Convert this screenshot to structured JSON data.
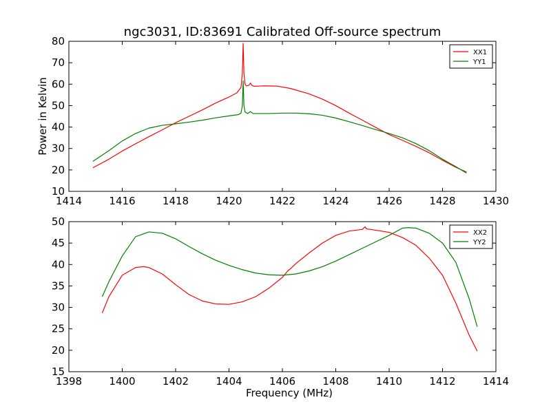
{
  "title": "ngc3031, ID:83691 Calibrated Off-source spectrum",
  "chart_data": [
    {
      "type": "line",
      "ylabel": "Power in Kelvin",
      "xlabel": "",
      "xlim": [
        1414,
        1430
      ],
      "ylim": [
        10,
        80
      ],
      "xticks": [
        "1414",
        "1416",
        "1418",
        "1420",
        "1422",
        "1424",
        "1426",
        "1428",
        "1430"
      ],
      "yticks": [
        "10",
        "20",
        "30",
        "40",
        "50",
        "60",
        "70",
        "80"
      ],
      "legend_position": "top-right",
      "series": [
        {
          "name": "XX1",
          "color": "#ff0000",
          "points": [
            [
              1414.9,
              21
            ],
            [
              1415.5,
              25
            ],
            [
              1416,
              28.8
            ],
            [
              1416.5,
              32.2
            ],
            [
              1417,
              35.5
            ],
            [
              1417.5,
              38.7
            ],
            [
              1418,
              42
            ],
            [
              1418.5,
              45
            ],
            [
              1419,
              48
            ],
            [
              1419.5,
              51.2
            ],
            [
              1420,
              54
            ],
            [
              1420.3,
              56
            ],
            [
              1420.45,
              58.5
            ],
            [
              1420.5,
              65
            ],
            [
              1420.53,
              79
            ],
            [
              1420.56,
              65
            ],
            [
              1420.6,
              60
            ],
            [
              1420.65,
              59.2
            ],
            [
              1420.75,
              59.5
            ],
            [
              1420.8,
              60.5
            ],
            [
              1420.85,
              59.5
            ],
            [
              1420.95,
              59
            ],
            [
              1421.3,
              59.2
            ],
            [
              1421.8,
              59.1
            ],
            [
              1422.3,
              58
            ],
            [
              1423,
              55.5
            ],
            [
              1423.5,
              53
            ],
            [
              1424,
              50
            ],
            [
              1424.5,
              46.5
            ],
            [
              1425,
              43.2
            ],
            [
              1425.5,
              39.8
            ],
            [
              1426,
              36.5
            ],
            [
              1426.5,
              33.8
            ],
            [
              1427,
              31
            ],
            [
              1427.5,
              28
            ],
            [
              1428,
              24.5
            ],
            [
              1428.5,
              21.2
            ],
            [
              1428.9,
              19
            ]
          ]
        },
        {
          "name": "YY1",
          "color": "#007f00",
          "points": [
            [
              1414.9,
              24
            ],
            [
              1415.5,
              29
            ],
            [
              1416,
              33.5
            ],
            [
              1416.5,
              37
            ],
            [
              1417,
              39.5
            ],
            [
              1417.5,
              40.8
            ],
            [
              1418,
              41.5
            ],
            [
              1418.5,
              42.3
            ],
            [
              1419,
              43.2
            ],
            [
              1419.5,
              44.3
            ],
            [
              1420,
              45.2
            ],
            [
              1420.35,
              45.8
            ],
            [
              1420.45,
              46.5
            ],
            [
              1420.5,
              50
            ],
            [
              1420.53,
              61.5
            ],
            [
              1420.56,
              50
            ],
            [
              1420.6,
              47
            ],
            [
              1420.7,
              46.3
            ],
            [
              1420.8,
              47.2
            ],
            [
              1420.9,
              46.3
            ],
            [
              1421.5,
              46.3
            ],
            [
              1422,
              46.5
            ],
            [
              1422.5,
              46.5
            ],
            [
              1423,
              46.2
            ],
            [
              1423.5,
              45.5
            ],
            [
              1424,
              44.2
            ],
            [
              1424.5,
              42.5
            ],
            [
              1425,
              40.7
            ],
            [
              1425.5,
              38.8
            ],
            [
              1426,
              37
            ],
            [
              1426.5,
              35
            ],
            [
              1427,
              32.3
            ],
            [
              1427.5,
              29
            ],
            [
              1428,
              25
            ],
            [
              1428.5,
              21.5
            ],
            [
              1428.9,
              18.5
            ]
          ]
        }
      ]
    },
    {
      "type": "line",
      "ylabel": "",
      "xlabel": "Frequency (MHz)",
      "xlim": [
        1398,
        1414
      ],
      "ylim": [
        15,
        50
      ],
      "xticks": [
        "1398",
        "1400",
        "1402",
        "1404",
        "1406",
        "1408",
        "1410",
        "1412",
        "1414"
      ],
      "yticks": [
        "15",
        "20",
        "25",
        "30",
        "35",
        "40",
        "45",
        "50"
      ],
      "legend_position": "top-right",
      "series": [
        {
          "name": "XX2",
          "color": "#ff0000",
          "points": [
            [
              1399.25,
              28.7
            ],
            [
              1399.5,
              32.5
            ],
            [
              1400,
              37.5
            ],
            [
              1400.5,
              39.3
            ],
            [
              1400.8,
              39.5
            ],
            [
              1401,
              39.3
            ],
            [
              1401.5,
              37.8
            ],
            [
              1402,
              35.3
            ],
            [
              1402.5,
              33
            ],
            [
              1403,
              31.5
            ],
            [
              1403.5,
              30.8
            ],
            [
              1404,
              30.7
            ],
            [
              1404.5,
              31.3
            ],
            [
              1405,
              32.5
            ],
            [
              1405.5,
              34.5
            ],
            [
              1406,
              37
            ],
            [
              1406.2,
              38.5
            ],
            [
              1406.3,
              39
            ],
            [
              1406.5,
              40.2
            ],
            [
              1407,
              42.7
            ],
            [
              1407.5,
              45
            ],
            [
              1408,
              46.8
            ],
            [
              1408.5,
              47.8
            ],
            [
              1409,
              48.2
            ],
            [
              1409.1,
              48.8
            ],
            [
              1409.15,
              48.3
            ],
            [
              1409.5,
              48
            ],
            [
              1410,
              47.5
            ],
            [
              1410.5,
              46.3
            ],
            [
              1411,
              44.5
            ],
            [
              1411.5,
              41.5
            ],
            [
              1412,
              37.5
            ],
            [
              1412.5,
              31
            ],
            [
              1413,
              23.5
            ],
            [
              1413.3,
              19.8
            ]
          ]
        },
        {
          "name": "YY2",
          "color": "#007f00",
          "points": [
            [
              1399.25,
              32.5
            ],
            [
              1399.5,
              36
            ],
            [
              1400,
              42
            ],
            [
              1400.5,
              46.5
            ],
            [
              1401,
              47.6
            ],
            [
              1401.5,
              47.3
            ],
            [
              1402,
              46
            ],
            [
              1402.5,
              44.2
            ],
            [
              1403,
              42.5
            ],
            [
              1403.5,
              41
            ],
            [
              1404,
              39.8
            ],
            [
              1404.5,
              38.8
            ],
            [
              1405,
              38
            ],
            [
              1405.5,
              37.6
            ],
            [
              1406,
              37.5
            ],
            [
              1406.5,
              37.8
            ],
            [
              1407,
              38.5
            ],
            [
              1407.5,
              39.5
            ],
            [
              1408,
              40.8
            ],
            [
              1408.5,
              42.3
            ],
            [
              1409,
              43.8
            ],
            [
              1409.5,
              45.3
            ],
            [
              1410,
              46.8
            ],
            [
              1410.5,
              48.5
            ],
            [
              1410.7,
              48.6
            ],
            [
              1411,
              48.5
            ],
            [
              1411.5,
              47.3
            ],
            [
              1412,
              45
            ],
            [
              1412.5,
              40.5
            ],
            [
              1413,
              32
            ],
            [
              1413.3,
              25.5
            ]
          ]
        }
      ]
    }
  ]
}
